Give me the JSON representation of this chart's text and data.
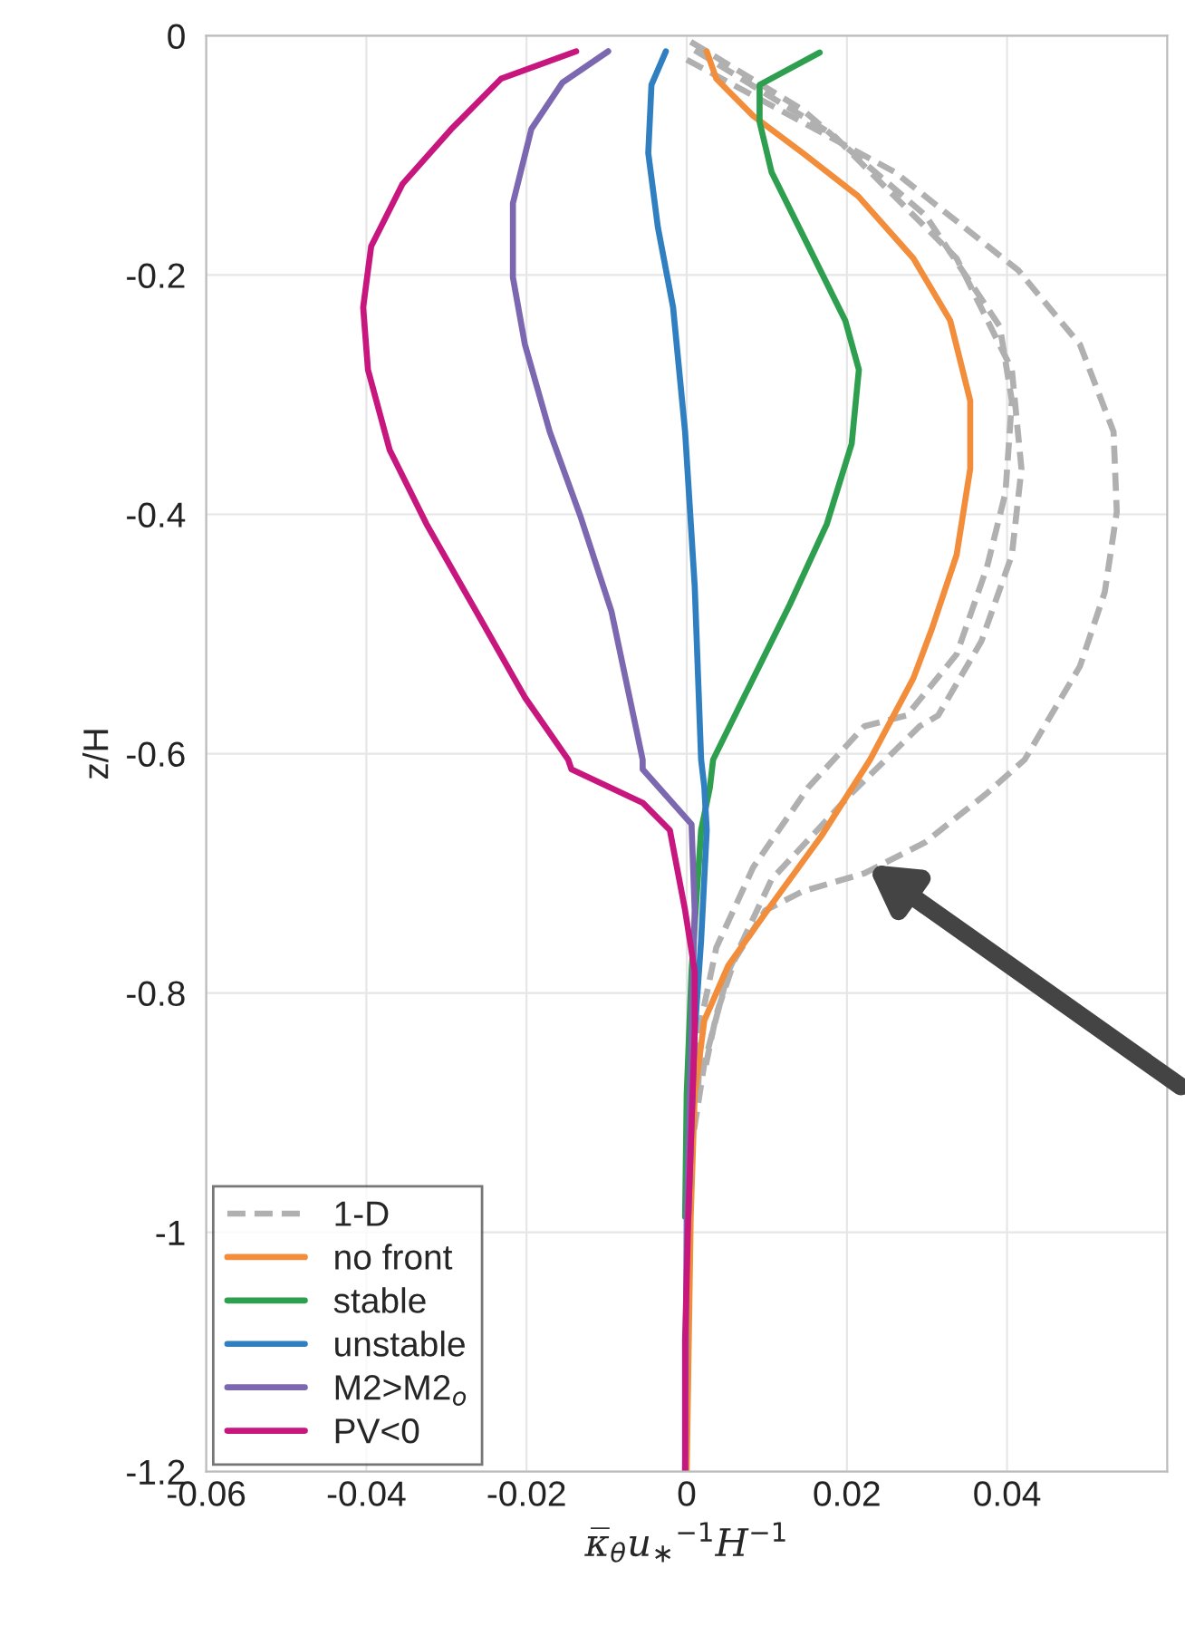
{
  "chart_data": {
    "type": "line",
    "xlabel": "κ̅$_{θ}$u$_{∗}$$^{−1}$H$^{−1}$",
    "ylabel": "z/H",
    "xlim": [
      -0.06,
      0.06
    ],
    "ylim": [
      -1.2,
      0
    ],
    "xticks": [
      {
        "value": -0.06,
        "label": "-0.06"
      },
      {
        "value": -0.04,
        "label": "-0.04"
      },
      {
        "value": -0.02,
        "label": "-0.02"
      },
      0,
      {
        "value": 0.02,
        "label": "0.02"
      },
      {
        "value": 0.04,
        "label": "0.04"
      }
    ],
    "yticks": [
      {
        "value": -1.2,
        "label": "-1.2"
      },
      {
        "value": -1,
        "label": "-1"
      },
      {
        "value": -0.8,
        "label": "-0.8"
      },
      {
        "value": -0.6,
        "label": "-0.6"
      },
      {
        "value": -0.4,
        "label": "-0.4"
      },
      {
        "value": -0.2,
        "label": "-0.2"
      },
      0
    ],
    "grid": true,
    "legend": "bottom left",
    "marker": "none",
    "series": [
      {
        "name": "1-D",
        "color": "#b0b0b0",
        "line_style": "dashed",
        "x": [
          0.0005,
          0.0145,
          0.0298,
          0.0391,
          0.0406,
          0.0398,
          0.0375,
          0.0337,
          0.0275,
          0.0222,
          0.0152,
          0.0083,
          0.0037,
          0.0018,
          0.0014
        ],
        "values": [
          -0.005,
          -0.062,
          -0.15,
          -0.243,
          -0.305,
          -0.382,
          -0.444,
          -0.517,
          -0.568,
          -0.577,
          -0.628,
          -0.695,
          -0.762,
          -0.823,
          -0.885
        ]
      },
      {
        "color": "#b0b0b0",
        "line_style": "dashed",
        "x": [
          0.001,
          0.0183,
          0.0337,
          0.0406,
          0.0418,
          0.0406,
          0.0368,
          0.0314,
          0.0291,
          0.0206,
          0.0106,
          0.0052,
          0.0022,
          0.0008
        ],
        "values": [
          -0.012,
          -0.083,
          -0.186,
          -0.279,
          -0.362,
          -0.434,
          -0.506,
          -0.568,
          -0.577,
          -0.633,
          -0.705,
          -0.782,
          -0.859,
          -0.92
        ]
      },
      {
        "color": "#b0b0b0",
        "line_style": "dashed",
        "x": [
          0,
          0.026,
          0.0414,
          0.0491,
          0.0533,
          0.0537,
          0.0522,
          0.0491,
          0.0422,
          0.0375,
          0.0298,
          0.0222,
          0.0145,
          0.0098,
          0.006,
          0.0037,
          0.0024
        ],
        "values": [
          -0.02,
          -0.114,
          -0.196,
          -0.258,
          -0.331,
          -0.398,
          -0.465,
          -0.527,
          -0.605,
          -0.633,
          -0.674,
          -0.7,
          -0.715,
          -0.731,
          -0.772,
          -0.818,
          -0.86
        ]
      },
      {
        "name": "no front",
        "color": "#f28e3b",
        "line_style": "solid",
        "x": [
          0.0025,
          0.0037,
          0.0083,
          0.0145,
          0.0214,
          0.0283,
          0.0329,
          0.0354,
          0.0354,
          0.0337,
          0.0306,
          0.0283,
          0.0229,
          0.0168,
          0.0106,
          0.0052,
          0.0022,
          0.001,
          0.0005,
          0
        ],
        "values": [
          -0.013,
          -0.036,
          -0.067,
          -0.098,
          -0.134,
          -0.186,
          -0.238,
          -0.305,
          -0.362,
          -0.434,
          -0.496,
          -0.537,
          -0.605,
          -0.669,
          -0.726,
          -0.777,
          -0.823,
          -0.885,
          -0.987,
          -1.2
        ]
      },
      {
        "name": "stable",
        "color": "#2e9e4f",
        "line_style": "solid",
        "x": [
          0.0166,
          0.0091,
          0.0091,
          0.0106,
          0.0152,
          0.0198,
          0.0215,
          0.0206,
          0.0175,
          0.0129,
          0.0075,
          0.0033,
          0.0029,
          0.0018,
          0.0006,
          0,
          -0.0002
        ],
        "values": [
          -0.014,
          -0.041,
          -0.072,
          -0.114,
          -0.176,
          -0.238,
          -0.279,
          -0.341,
          -0.408,
          -0.475,
          -0.548,
          -0.605,
          -0.628,
          -0.664,
          -0.782,
          -0.885,
          -0.987
        ]
      },
      {
        "name": "unstable",
        "color": "#2f7fc1",
        "line_style": "solid",
        "x": [
          -0.0026,
          -0.0044,
          -0.0048,
          -0.0036,
          -0.0017,
          -0.0002,
          0.001,
          0.0018,
          0.0022,
          0.0025,
          0.0018,
          0.001,
          0.0002
        ],
        "values": [
          -0.013,
          -0.041,
          -0.098,
          -0.16,
          -0.227,
          -0.331,
          -0.46,
          -0.605,
          -0.628,
          -0.664,
          -0.756,
          -0.833,
          -0.987
        ]
      },
      {
        "name": "M2>M2$_{o}$",
        "color": "#7b68b0",
        "line_style": "solid",
        "x": [
          -0.0098,
          -0.0155,
          -0.0194,
          -0.0217,
          -0.0217,
          -0.0202,
          -0.0171,
          -0.0132,
          -0.0094,
          -0.0055,
          -0.0055,
          0.0006,
          0.001,
          0.0006,
          0,
          -0.0002
        ],
        "values": [
          -0.013,
          -0.039,
          -0.078,
          -0.14,
          -0.202,
          -0.258,
          -0.331,
          -0.403,
          -0.481,
          -0.605,
          -0.613,
          -0.659,
          -0.731,
          -0.833,
          -0.987,
          -1.2
        ]
      },
      {
        "name": "PV<0",
        "color": "#c7177f",
        "line_style": "solid",
        "x": [
          -0.0138,
          -0.0232,
          -0.0294,
          -0.0355,
          -0.0394,
          -0.0404,
          -0.0398,
          -0.0371,
          -0.0325,
          -0.0263,
          -0.0202,
          -0.0148,
          -0.0144,
          -0.0055,
          -0.0021,
          -0.0002,
          0.001,
          0.001,
          0.0006,
          0.0002,
          -0.0002,
          -0.0002
        ],
        "values": [
          -0.013,
          -0.036,
          -0.078,
          -0.124,
          -0.176,
          -0.227,
          -0.279,
          -0.346,
          -0.408,
          -0.481,
          -0.553,
          -0.605,
          -0.613,
          -0.641,
          -0.664,
          -0.731,
          -0.782,
          -0.833,
          -0.91,
          -0.987,
          -1.09,
          -1.2
        ]
      }
    ]
  }
}
